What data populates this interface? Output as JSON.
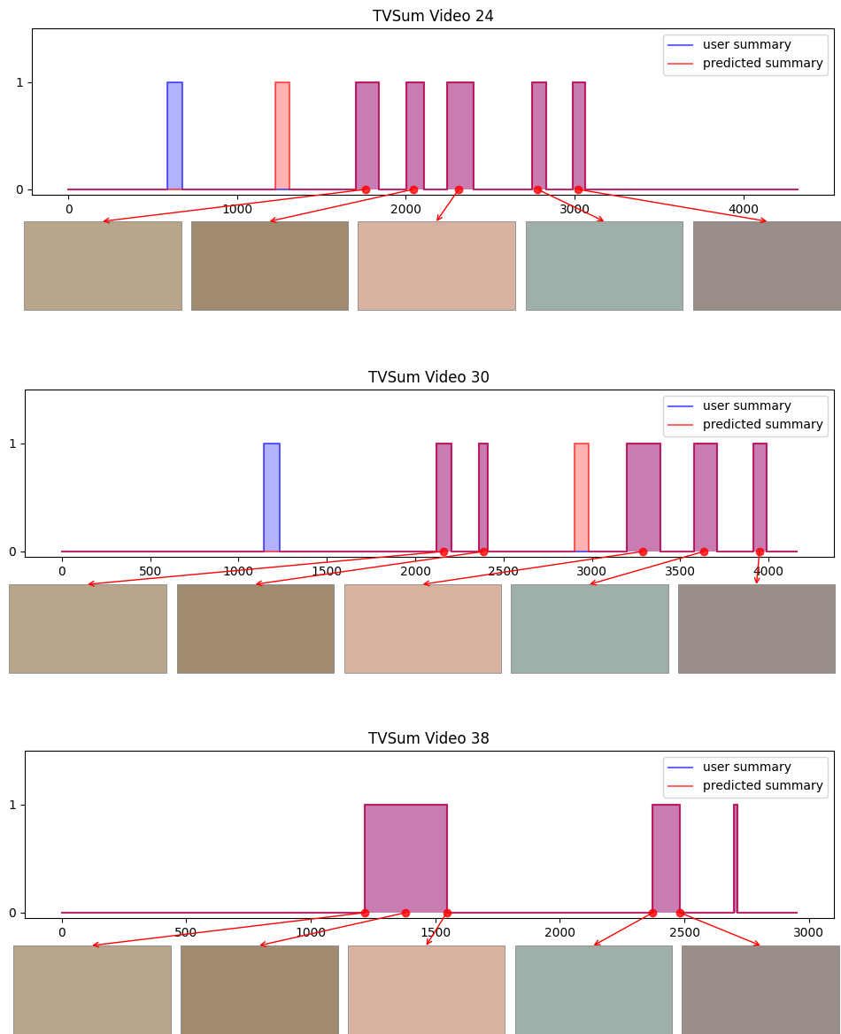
{
  "chart_data": [
    {
      "type": "step_area",
      "title": "TVSum Video 24",
      "xlim": [
        -216,
        4536
      ],
      "xticks": [
        0,
        1000,
        2000,
        3000,
        4000
      ],
      "ylim": [
        -0.05,
        1.5
      ],
      "yticks": [
        0,
        1
      ],
      "grid": false,
      "legend": "upper right",
      "series": [
        {
          "name": "user summary",
          "color": "blue",
          "x": [
            0,
            588,
            677,
            1703,
            1839,
            2005,
            2109,
            2245,
            2401,
            2745,
            2833,
            2990,
            3062,
            4320
          ],
          "values": [
            0,
            1,
            0,
            1,
            0,
            1,
            0,
            1,
            0,
            1,
            0,
            1,
            0,
            0
          ]
        },
        {
          "name": "predicted summary",
          "color": "red",
          "x": [
            0,
            1224,
            1312,
            1703,
            1839,
            2005,
            2109,
            2245,
            2401,
            2745,
            2833,
            2990,
            3062,
            4320
          ],
          "values": [
            0,
            1,
            0,
            1,
            0,
            1,
            0,
            1,
            0,
            1,
            0,
            1,
            0,
            0
          ]
        }
      ],
      "keyframes": [
        1760,
        2042,
        2313,
        2781,
        3021
      ]
    },
    {
      "type": "step_area",
      "title": "TVSum Video 30",
      "xlim": [
        -210,
        4370
      ],
      "xticks": [
        0,
        500,
        1000,
        1500,
        2000,
        2500,
        3000,
        3500,
        4000
      ],
      "ylim": [
        -0.05,
        1.5
      ],
      "yticks": [
        0,
        1
      ],
      "grid": false,
      "legend": "upper right",
      "series": [
        {
          "name": "user summary",
          "color": "blue",
          "x": [
            0,
            1144,
            1234,
            2121,
            2207,
            2363,
            2411,
            3199,
            3389,
            3578,
            3711,
            3915,
            3987,
            4160
          ],
          "values": [
            0,
            1,
            0,
            1,
            0,
            1,
            0,
            1,
            0,
            1,
            0,
            1,
            0,
            0
          ]
        },
        {
          "name": "predicted summary",
          "color": "red",
          "x": [
            0,
            2121,
            2207,
            2363,
            2411,
            2900,
            2981,
            3199,
            3389,
            3578,
            3711,
            3915,
            3987,
            4160
          ],
          "values": [
            0,
            1,
            0,
            1,
            0,
            1,
            0,
            1,
            0,
            1,
            0,
            1,
            0,
            0
          ]
        }
      ],
      "keyframes": [
        2160,
        2387,
        3289,
        3634,
        3949
      ]
    },
    {
      "type": "step_area",
      "title": "TVSum Video 38",
      "xlim": [
        -148,
        3100
      ],
      "xticks": [
        0,
        500,
        1000,
        1500,
        2000,
        2500,
        3000
      ],
      "ylim": [
        -0.05,
        1.5
      ],
      "yticks": [
        0,
        1
      ],
      "grid": false,
      "legend": "upper right",
      "series": [
        {
          "name": "user summary",
          "color": "blue",
          "x": [
            0,
            1216,
            1546,
            2373,
            2482,
            2699,
            2713,
            2950
          ],
          "values": [
            0,
            1,
            0,
            1,
            0,
            1,
            0,
            0
          ]
        },
        {
          "name": "predicted summary",
          "color": "red",
          "x": [
            0,
            1216,
            1546,
            2373,
            2482,
            2699,
            2713,
            2950
          ],
          "values": [
            0,
            1,
            0,
            1,
            0,
            1,
            0,
            0
          ]
        }
      ],
      "keyframes": [
        1216,
        1381,
        1546,
        2373,
        2482
      ]
    }
  ]
}
